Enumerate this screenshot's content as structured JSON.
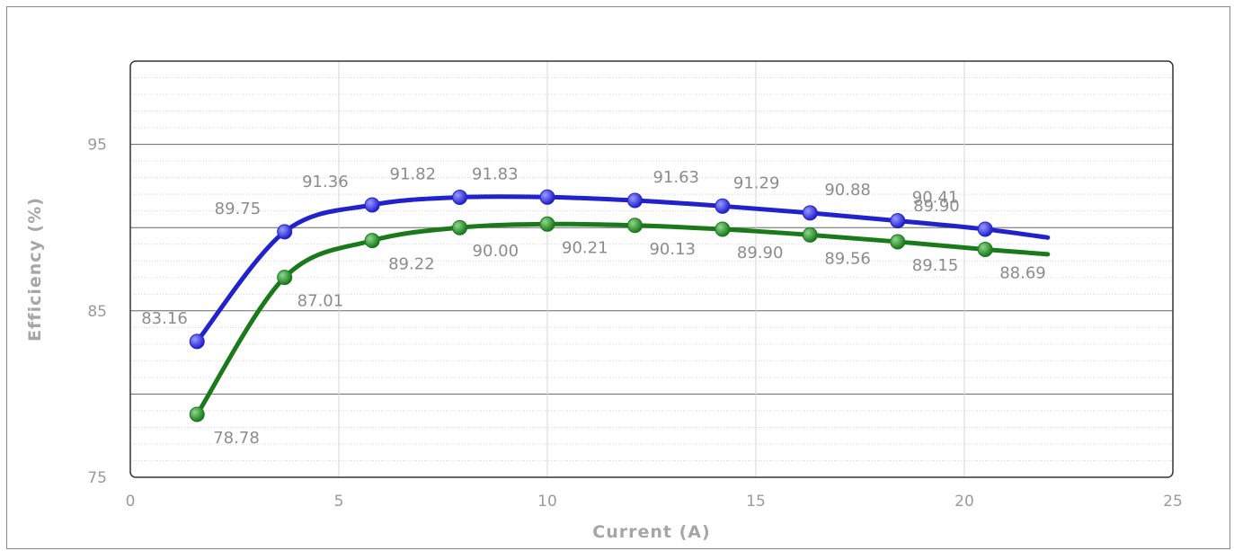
{
  "chart_data": {
    "type": "line",
    "title": "",
    "xlabel": "Current (A)",
    "ylabel": "Efficiency (%)",
    "xlim": [
      0,
      25
    ],
    "ylim": [
      75,
      100
    ],
    "x_ticks": [
      "0",
      "5",
      "10",
      "15",
      "20",
      "25"
    ],
    "y_ticks": [
      "75",
      "85",
      "95"
    ],
    "grid": true,
    "legend": "none",
    "series": [
      {
        "color": "#2222cc",
        "x": [
          1.6,
          3.7,
          5.8,
          7.9,
          10.0,
          12.1,
          14.2,
          16.3,
          18.4,
          20.5
        ],
        "values": [
          83.16,
          89.75,
          91.36,
          91.82,
          91.83,
          91.63,
          91.29,
          90.88,
          90.41,
          89.9
        ],
        "labels": [
          "83.16",
          "89.75",
          "91.36",
          "91.82",
          "91.83",
          "91.63",
          "91.29",
          "90.88",
          "90.41",
          "89.90"
        ],
        "curve_end": [
          22.0,
          89.4
        ]
      },
      {
        "color": "#1a7a1a",
        "x": [
          1.6,
          3.7,
          5.8,
          7.9,
          10.0,
          12.1,
          14.2,
          16.3,
          18.4,
          20.5
        ],
        "values": [
          78.78,
          87.01,
          89.22,
          90.0,
          90.21,
          90.13,
          89.9,
          89.56,
          89.15,
          88.69
        ],
        "labels": [
          "78.78",
          "87.01",
          "89.22",
          "90.00",
          "90.21",
          "90.13",
          "89.90",
          "89.56",
          "89.15",
          "88.69"
        ],
        "curve_end": [
          22.0,
          88.4
        ]
      }
    ]
  }
}
